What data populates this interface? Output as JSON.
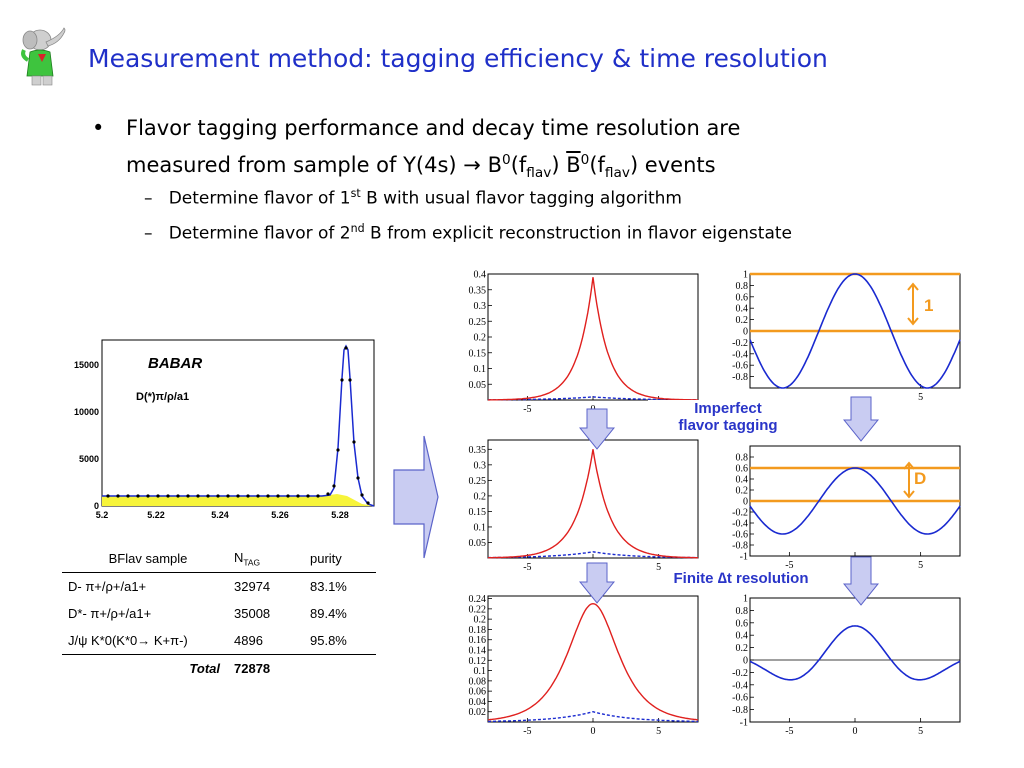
{
  "header": {
    "title": "Measurement method: tagging efficiency & time resolution"
  },
  "bullet": {
    "symbol": "•",
    "line1": "Flavor tagging performance and decay time resolution are",
    "line2_a": "measured from sample of Υ(4s)",
    "line2_arrow": "→",
    "line2_b": "B",
    "line2_sup1": "0",
    "line2_c": "(f",
    "line2_sub1": "flav",
    "line2_d": ") ",
    "line2_e": "B",
    "line2_sup2": "0",
    "line2_f": "(f",
    "line2_sub2": "flav",
    "line2_g": ") events"
  },
  "subbullets": [
    {
      "dash": "–",
      "pre": "Determine flavor of 1",
      "sup": "st",
      "post": " B with usual flavor tagging algorithm"
    },
    {
      "dash": "–",
      "pre": "Determine flavor of 2",
      "sup": "nd",
      "post": " B from explicit reconstruction in flavor eigenstate"
    }
  ],
  "mass_plot": {
    "brand": "BABAR",
    "channel": "D(*)π/ρ/a1",
    "y_ticks": [
      "15000",
      "10000",
      "5000",
      "0"
    ],
    "x_ticks": [
      "5.2",
      "5.22",
      "5.24",
      "5.26",
      "5.28"
    ]
  },
  "table": {
    "headers": [
      "BFlav sample",
      "N",
      "TAG",
      "purity"
    ],
    "rows": [
      {
        "sample": "D- π+/ρ+/a1+",
        "n": "32974",
        "purity": "83.1%"
      },
      {
        "sample": "D*- π+/ρ+/a1+",
        "n": "35008",
        "purity": "89.4%"
      },
      {
        "sample": "J/ψ K*0(K*0→ K+π-)",
        "n": "4896",
        "purity": "95.8%"
      }
    ],
    "total_label": "Total",
    "total_value": "72878"
  },
  "labels": {
    "imperfect_1": "Imperfect",
    "imperfect_2": "flavor tagging",
    "finite": "Finite ∆t resolution",
    "one": "1",
    "d": "D"
  },
  "chart_data": [
    {
      "type": "line",
      "title": "",
      "xlabel": "",
      "ylabel": "",
      "x_ticks": [
        "-5",
        "0",
        "5"
      ],
      "y_ticks": [
        "0.4",
        "0.35",
        "0.3",
        "0.25",
        "0.2",
        "0.15",
        "0.1",
        "0.05"
      ],
      "ylim": [
        0,
        0.4
      ],
      "series": [
        {
          "shape": "exponential peak",
          "values": [
            {
              "x": 0,
              "y": 0.39
            }
          ]
        },
        {
          "shape": "dashed small",
          "values": [
            {
              "x": 0,
              "y": 0.01
            }
          ]
        }
      ]
    },
    {
      "type": "line",
      "x_ticks": [
        "-5",
        "0",
        "5"
      ],
      "y_ticks": [
        "0.35",
        "0.3",
        "0.25",
        "0.2",
        "0.15",
        "0.1",
        "0.05"
      ],
      "ylim": [
        0,
        0.38
      ],
      "series": [
        {
          "values": [
            {
              "x": 0,
              "y": 0.35
            }
          ]
        },
        {
          "values": [
            {
              "x": 0,
              "y": 0.02
            }
          ]
        }
      ]
    },
    {
      "type": "line",
      "x_ticks": [
        "-5",
        "0",
        "5"
      ],
      "y_ticks": [
        "0.24",
        "0.22",
        "0.2",
        "0.18",
        "0.16",
        "0.14",
        "0.12",
        "0.1",
        "0.08",
        "0.06",
        "0.04",
        "0.02"
      ],
      "ylim": [
        0,
        0.245
      ],
      "series": [
        {
          "values": [
            {
              "x": 0,
              "y": 0.23
            }
          ]
        },
        {
          "values": [
            {
              "x": 0,
              "y": 0.02
            }
          ]
        }
      ]
    },
    {
      "type": "line",
      "x_ticks": [
        "5"
      ],
      "y_ticks": [
        "1",
        "0.8",
        "0.6",
        "0.4",
        "0.2",
        "0",
        "-0.2",
        "-0.4",
        "-0.6",
        "-0.8"
      ],
      "ylim": [
        -1,
        1
      ],
      "series": [
        {
          "shape": "cosine",
          "amplitude": 1.0
        }
      ]
    },
    {
      "type": "line",
      "x_ticks": [
        "-5",
        "0",
        "5"
      ],
      "y_ticks": [
        "0.8",
        "0.6",
        "0.4",
        "0.2",
        "0",
        "-0.2",
        "-0.4",
        "-0.6",
        "-0.8",
        "-1"
      ],
      "ylim": [
        -1,
        1
      ],
      "series": [
        {
          "shape": "cosine",
          "amplitude": 0.6
        }
      ]
    },
    {
      "type": "line",
      "x_ticks": [
        "-5",
        "0",
        "5"
      ],
      "y_ticks": [
        "1",
        "0.8",
        "0.6",
        "0.4",
        "0.2",
        "0",
        "-0.2",
        "-0.4",
        "-0.6",
        "-0.8",
        "-1"
      ],
      "ylim": [
        -1,
        1
      ],
      "series": [
        {
          "shape": "damped cosine",
          "amplitude": 0.55
        }
      ]
    }
  ]
}
